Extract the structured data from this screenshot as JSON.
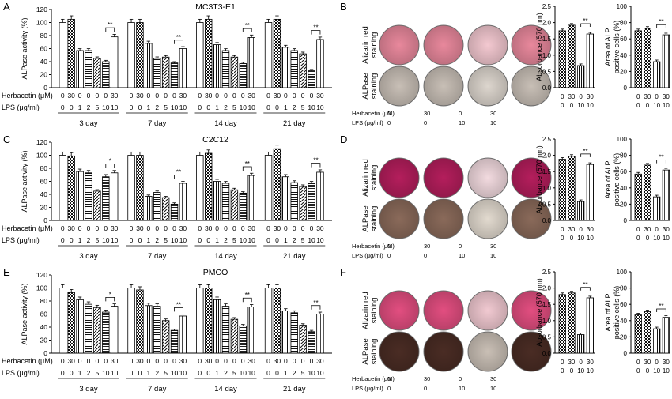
{
  "panels": [
    {
      "letter": "A",
      "cell": "MC3T3-E1",
      "ylabel": "ALPase activity  (%)",
      "days": [
        "3 day",
        "7 day",
        "14 day",
        "21 day"
      ],
      "herb": [
        "0",
        "30",
        "0",
        "0",
        "0",
        "0",
        "30"
      ],
      "lps": [
        "0",
        "0",
        "1",
        "2",
        "5",
        "10",
        "10"
      ],
      "heads": [
        "Herbacetin (μM)",
        "LPS (μg/ml)"
      ],
      "stain_labels": [
        "Alizarin red staining",
        "ALPase staining"
      ],
      "stain_heads": [
        "Herbacetin (μM)",
        "LPS (μg/ml)"
      ],
      "stain_cols": [
        [
          "0",
          "0"
        ],
        [
          "30",
          "0"
        ],
        [
          "0",
          "10"
        ],
        [
          "30",
          "10"
        ]
      ],
      "absorb": {
        "ylabel": "Absorbance (570 nm)",
        "ylim": [
          0,
          2.5
        ],
        "ticks": [
          "0.0",
          "0.5",
          "1.0",
          "1.5",
          "2.0",
          "2.5"
        ],
        "values": [
          1.75,
          1.92,
          0.68,
          1.65
        ],
        "sig": "**"
      },
      "area": {
        "ylabel": "Area of ALP positive cells (%)",
        "ylim": [
          0,
          100
        ],
        "ticks": [
          "0",
          "20",
          "40",
          "60",
          "80",
          "100"
        ],
        "values": [
          70,
          73,
          32,
          65
        ],
        "sig": "**"
      },
      "small_herb": [
        "0",
        "30",
        "0",
        "30"
      ],
      "small_lps": [
        "0",
        "0",
        "10",
        "10"
      ],
      "chart_data": {
        "type": "bar",
        "ylim": [
          0,
          120
        ],
        "ticks": [
          "0",
          "20",
          "40",
          "60",
          "80",
          "100",
          "120"
        ],
        "series": [
          [
            100,
            105,
            57,
            57,
            45,
            40,
            78
          ],
          [
            100,
            100,
            68,
            45,
            47,
            38,
            60
          ],
          [
            100,
            105,
            66,
            57,
            47,
            37,
            77
          ],
          [
            100,
            105,
            62,
            57,
            52,
            26,
            74
          ]
        ],
        "sig": [
          "**",
          "**",
          "**",
          "**"
        ]
      }
    },
    {
      "letter": "C",
      "cell": "C2C12",
      "ylabel": "ALPase activity  (%)",
      "days": [
        "3 day",
        "7 day",
        "14 day",
        "21 day"
      ],
      "herb": [
        "0",
        "30",
        "0",
        "0",
        "0",
        "0",
        "30"
      ],
      "lps": [
        "0",
        "0",
        "1",
        "2",
        "5",
        "10",
        "10"
      ],
      "heads": [
        "Herbacetin (μM)",
        "LPS (μg/ml)"
      ],
      "stain_labels": [
        "Alizarin red staining",
        "ALPase staining"
      ],
      "stain_heads": [
        "Herbacetin (μM)",
        "LPS (μg/ml)"
      ],
      "stain_cols": [
        [
          "0",
          "0"
        ],
        [
          "30",
          "0"
        ],
        [
          "0",
          "10"
        ],
        [
          "30",
          "10"
        ]
      ],
      "absorb": {
        "ylabel": "Absorbance (570 nm)",
        "ylim": [
          0,
          2.5
        ],
        "ticks": [
          "0.0",
          "0.5",
          "1.0",
          "1.5",
          "2.0",
          "2.5"
        ],
        "values": [
          1.88,
          1.97,
          0.58,
          1.72
        ],
        "sig": "**"
      },
      "area": {
        "ylabel": "Area of ALP positive cells (%)",
        "ylim": [
          0,
          100
        ],
        "ticks": [
          "0",
          "20",
          "40",
          "60",
          "80",
          "100"
        ],
        "values": [
          57,
          68,
          29,
          62
        ],
        "sig": "**"
      },
      "small_herb": [
        "0",
        "30",
        "0",
        "30"
      ],
      "small_lps": [
        "0",
        "0",
        "10",
        "10"
      ],
      "chart_data": {
        "type": "bar",
        "ylim": [
          0,
          120
        ],
        "ticks": [
          "0",
          "20",
          "40",
          "60",
          "80",
          "100",
          "120"
        ],
        "series": [
          [
            100,
            99,
            75,
            73,
            45,
            67,
            73
          ],
          [
            100,
            100,
            37,
            43,
            35,
            25,
            57
          ],
          [
            100,
            103,
            60,
            57,
            47,
            42,
            69
          ],
          [
            100,
            110,
            67,
            58,
            52,
            57,
            74
          ]
        ],
        "sig": [
          "*",
          "**",
          "**",
          "**"
        ]
      }
    },
    {
      "letter": "E",
      "cell": "PMCO",
      "ylabel": "ALPase activity  (%)",
      "days": [
        "3 day",
        "7 day",
        "14 day",
        "21 day"
      ],
      "herb": [
        "0",
        "30",
        "0",
        "0",
        "0",
        "0",
        "30"
      ],
      "lps": [
        "0",
        "0",
        "1",
        "2",
        "5",
        "10",
        "10"
      ],
      "heads": [
        "Herbacetin (μM)",
        "LPS (μg/ml)"
      ],
      "stain_labels": [
        "Alizarin red staining",
        "ALPase staining"
      ],
      "stain_heads": [
        "Herbacetin (μM)",
        "LPS (μg/ml)"
      ],
      "stain_cols": [
        [
          "0",
          "0"
        ],
        [
          "30",
          "0"
        ],
        [
          "0",
          "10"
        ],
        [
          "30",
          "10"
        ]
      ],
      "absorb": {
        "ylabel": "Absorbance (570 nm)",
        "ylim": [
          0,
          2.5
        ],
        "ticks": [
          "0.0",
          "0.5",
          "1.0",
          "1.5",
          "2.0",
          "2.5"
        ],
        "values": [
          1.8,
          1.85,
          0.57,
          1.7
        ],
        "sig": "**"
      },
      "area": {
        "ylabel": "Area of ALP positive cells (%)",
        "ylim": [
          0,
          100
        ],
        "ticks": [
          "0",
          "20",
          "40",
          "60",
          "80",
          "100"
        ],
        "values": [
          47,
          51,
          30,
          44
        ],
        "sig": "**"
      },
      "small_herb": [
        "0",
        "30",
        "0",
        "30"
      ],
      "small_lps": [
        "0",
        "0",
        "10",
        "10"
      ],
      "chart_data": {
        "type": "bar",
        "ylim": [
          0,
          120
        ],
        "ticks": [
          "0",
          "20",
          "40",
          "60",
          "80",
          "100",
          "120"
        ],
        "series": [
          [
            100,
            93,
            82,
            75,
            70,
            63,
            72
          ],
          [
            100,
            97,
            73,
            72,
            50,
            35,
            57
          ],
          [
            100,
            100,
            82,
            72,
            52,
            42,
            71
          ],
          [
            100,
            100,
            65,
            62,
            43,
            33,
            60
          ]
        ],
        "sig": [
          "*",
          "**",
          "**",
          "**"
        ]
      }
    }
  ],
  "right_letters": [
    "B",
    "D",
    "F"
  ],
  "colors": {
    "alizarin": [
      "#e8889c",
      "#b41e5c",
      "#e24e80"
    ],
    "alizarin_faint": [
      "#f3c8d0",
      "#f2dadf",
      "#f1c9d1"
    ],
    "alp": [
      "#c8bfb6",
      "#8a6a5a",
      "#4a2c24"
    ],
    "alp_faint": [
      "#ddd6ce",
      "#e2dacf",
      "#c9bfb5"
    ]
  }
}
